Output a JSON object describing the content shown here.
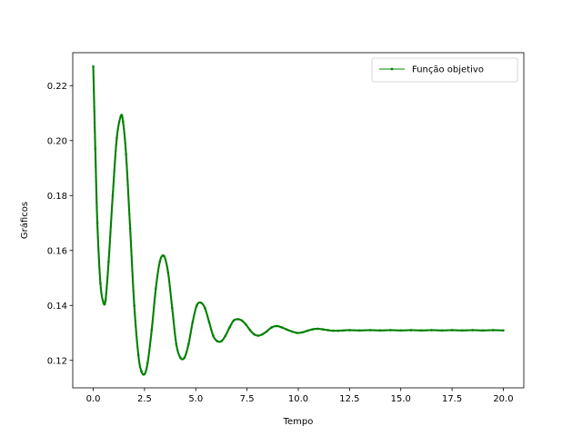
{
  "chart_data": {
    "type": "line",
    "xlabel": "Tempo",
    "ylabel": "Gráficos",
    "xlim": [
      -1.0,
      21.0
    ],
    "ylim": [
      0.11,
      0.232
    ],
    "xticks": [
      0.0,
      2.5,
      5.0,
      7.5,
      10.0,
      12.5,
      15.0,
      17.5,
      20.0
    ],
    "xtick_labels": [
      "0.0",
      "2.5",
      "5.0",
      "7.5",
      "10.0",
      "12.5",
      "15.0",
      "17.5",
      "20.0"
    ],
    "yticks": [
      0.12,
      0.14,
      0.16,
      0.18,
      0.2,
      0.22
    ],
    "ytick_labels": [
      "0.12",
      "0.14",
      "0.16",
      "0.18",
      "0.20",
      "0.22"
    ],
    "grid": false,
    "legend": "top-right",
    "series": [
      {
        "name": "Função objetivo",
        "color": "#008000",
        "marker": "dot",
        "x": [
          0.0,
          0.1,
          0.2,
          0.35,
          0.5,
          0.6,
          0.75,
          0.95,
          1.15,
          1.35,
          1.45,
          1.6,
          1.8,
          2.0,
          2.2,
          2.35,
          2.5,
          2.65,
          2.85,
          3.05,
          3.25,
          3.45,
          3.65,
          3.85,
          4.05,
          4.25,
          4.45,
          4.65,
          4.85,
          5.05,
          5.25,
          5.45,
          5.65,
          5.85,
          6.05,
          6.25,
          6.45,
          6.65,
          6.85,
          7.05,
          7.25,
          7.45,
          7.65,
          7.85,
          8.05,
          8.25,
          8.45,
          8.7,
          8.95,
          9.2,
          9.45,
          9.7,
          9.95,
          10.2,
          10.45,
          10.7,
          10.95,
          11.2,
          11.45,
          11.7,
          11.95,
          12.2,
          12.5,
          13.0,
          13.5,
          14.0,
          14.5,
          15.0,
          15.5,
          16.0,
          16.5,
          17.0,
          17.5,
          18.0,
          18.5,
          19.0,
          19.5,
          20.0
        ],
        "y": [
          0.227,
          0.197,
          0.17,
          0.148,
          0.141,
          0.142,
          0.156,
          0.18,
          0.201,
          0.209,
          0.207,
          0.195,
          0.168,
          0.14,
          0.122,
          0.116,
          0.115,
          0.119,
          0.131,
          0.146,
          0.156,
          0.158,
          0.152,
          0.139,
          0.126,
          0.121,
          0.121,
          0.126,
          0.134,
          0.14,
          0.141,
          0.139,
          0.134,
          0.129,
          0.127,
          0.127,
          0.129,
          0.132,
          0.1345,
          0.135,
          0.1345,
          0.133,
          0.131,
          0.1295,
          0.129,
          0.1295,
          0.1305,
          0.132,
          0.1325,
          0.132,
          0.1312,
          0.1305,
          0.13,
          0.1302,
          0.1308,
          0.1313,
          0.1315,
          0.1313,
          0.131,
          0.1308,
          0.1308,
          0.1309,
          0.131,
          0.1309,
          0.131,
          0.1309,
          0.131,
          0.1309,
          0.131,
          0.1309,
          0.131,
          0.1309,
          0.131,
          0.1309,
          0.131,
          0.1309,
          0.131,
          0.1309
        ]
      }
    ]
  }
}
